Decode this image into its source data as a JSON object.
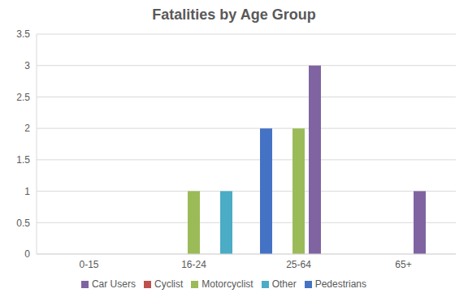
{
  "chart_data": {
    "type": "bar",
    "title": "Fatalities by Age Group",
    "categories": [
      "0-15",
      "16-24",
      "25-64",
      "65+"
    ],
    "series": [
      {
        "name": "Pedestrians",
        "color": "#4472c4",
        "values": [
          0,
          0,
          2,
          0
        ]
      },
      {
        "name": "Cyclist",
        "color": "#c0504d",
        "values": [
          0,
          0,
          0,
          0
        ]
      },
      {
        "name": "Motorcyclist",
        "color": "#9bbb59",
        "values": [
          0,
          1,
          2,
          0
        ]
      },
      {
        "name": "Car Users",
        "color": "#8064a2",
        "values": [
          0,
          0,
          3,
          1
        ]
      },
      {
        "name": "Other",
        "color": "#4bacc6",
        "values": [
          0,
          1,
          0,
          0
        ]
      }
    ],
    "ylim": [
      0,
      3.5
    ],
    "yticks": [
      0,
      0.5,
      1,
      1.5,
      2,
      2.5,
      3,
      3.5
    ],
    "grid": true,
    "legend": "bottom"
  }
}
